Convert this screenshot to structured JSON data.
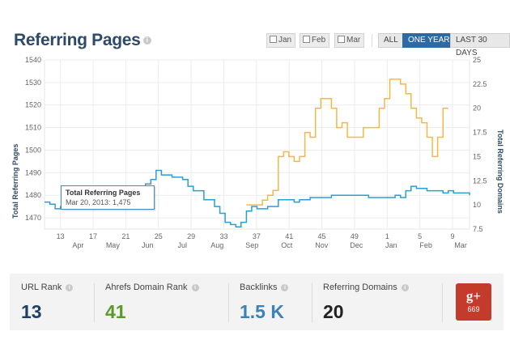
{
  "header": {
    "title": "Referring Pages",
    "filters": [
      "Jan",
      "Feb",
      "Mar"
    ],
    "ranges": [
      "ALL",
      "ONE YEAR",
      "LAST 30 DAYS"
    ],
    "active_range": "ONE YEAR"
  },
  "tooltip": {
    "title": "Total Referring Pages",
    "value": "Mar 20, 2013: 1,475"
  },
  "chart_data": {
    "type": "line",
    "ylabel": "Total Referring Pages",
    "y2label": "Total Referring Domains",
    "ylim": [
      1465,
      1540
    ],
    "y_ticks": [
      "1470",
      "1480",
      "1490",
      "1500",
      "1510",
      "1520",
      "1530",
      "1540"
    ],
    "y2lim": [
      7.5,
      25
    ],
    "y2_ticks": [
      "7.5",
      "10",
      "12.5",
      "15",
      "17.5",
      "20",
      "22.5",
      "25"
    ],
    "week_ticks": [
      "13",
      "17",
      "21",
      "25",
      "29",
      "33",
      "37",
      "41",
      "45",
      "49",
      "1",
      "5",
      "9"
    ],
    "month_ticks": [
      "Apr",
      "May",
      "Jun",
      "Jul",
      "Aug",
      "Sep",
      "Oct",
      "Nov",
      "Dec",
      "Jan",
      "Feb",
      "Mar"
    ],
    "grid": true,
    "series": [
      {
        "name": "Total Referring Pages",
        "axis": "left",
        "color": "#2a9fd6",
        "points": [
          [
            0,
            1477
          ],
          [
            1,
            1476
          ],
          [
            2,
            1474
          ],
          [
            3,
            1475
          ],
          [
            4,
            1475
          ],
          [
            5,
            1478
          ],
          [
            7,
            1480
          ],
          [
            10,
            1482
          ],
          [
            14,
            1483
          ],
          [
            17,
            1484
          ],
          [
            19,
            1485
          ],
          [
            20,
            1487
          ],
          [
            21,
            1491
          ],
          [
            22,
            1489
          ],
          [
            24,
            1488
          ],
          [
            26,
            1487
          ],
          [
            27,
            1484
          ],
          [
            28,
            1482
          ],
          [
            30,
            1478
          ],
          [
            32,
            1475
          ],
          [
            33,
            1472
          ],
          [
            34,
            1468
          ],
          [
            35,
            1467
          ],
          [
            36,
            1466
          ],
          [
            37,
            1468
          ],
          [
            38,
            1473
          ],
          [
            39,
            1475
          ],
          [
            40,
            1474
          ],
          [
            42,
            1475
          ],
          [
            44,
            1478
          ],
          [
            47,
            1477
          ],
          [
            48,
            1478
          ],
          [
            50,
            1479
          ],
          [
            52,
            1479
          ],
          [
            54,
            1480
          ],
          [
            60,
            1480
          ],
          [
            61,
            1479
          ],
          [
            62,
            1479
          ],
          [
            66,
            1480
          ],
          [
            67,
            1479
          ],
          [
            68,
            1482
          ],
          [
            69,
            1484
          ],
          [
            70,
            1483
          ],
          [
            72,
            1482
          ],
          [
            75,
            1481
          ],
          [
            76,
            1482
          ],
          [
            77,
            1481
          ],
          [
            80,
            1480
          ]
        ]
      },
      {
        "name": "Total Referring Domains",
        "axis": "right",
        "color": "#f5b942",
        "points": [
          [
            38,
            10
          ],
          [
            40,
            10
          ],
          [
            41,
            10.5
          ],
          [
            42,
            11
          ],
          [
            43,
            11.5
          ],
          [
            44,
            15
          ],
          [
            45,
            15.5
          ],
          [
            46,
            15
          ],
          [
            47,
            14.5
          ],
          [
            48,
            15
          ],
          [
            49,
            17.5
          ],
          [
            50,
            17
          ],
          [
            51,
            20
          ],
          [
            52,
            21
          ],
          [
            53,
            21
          ],
          [
            54,
            20
          ],
          [
            55,
            18
          ],
          [
            56,
            18.5
          ],
          [
            57,
            17
          ],
          [
            59,
            17
          ],
          [
            60,
            18
          ],
          [
            62,
            18
          ],
          [
            63,
            20
          ],
          [
            64,
            21
          ],
          [
            65,
            23
          ],
          [
            66,
            23
          ],
          [
            67,
            22.5
          ],
          [
            68,
            21.5
          ],
          [
            69,
            20
          ],
          [
            70,
            19
          ],
          [
            71,
            18.5
          ],
          [
            72,
            17
          ],
          [
            73,
            15
          ],
          [
            74,
            17
          ],
          [
            75,
            20
          ],
          [
            76,
            20
          ]
        ]
      }
    ]
  },
  "stats": [
    {
      "label": "URL Rank",
      "value": "13",
      "color": "#1f3f66"
    },
    {
      "label": "Ahrefs Domain Rank",
      "value": "41",
      "color": "#5a9a2a"
    },
    {
      "label": "Backlinks",
      "value": "1.5 K",
      "color": "#3a82b7"
    },
    {
      "label": "Referring Domains",
      "value": "20",
      "color": "#222222"
    }
  ],
  "social": {
    "icon": "google-plus-icon",
    "label": "g+",
    "count": "669",
    "color": "#c43a2b"
  }
}
